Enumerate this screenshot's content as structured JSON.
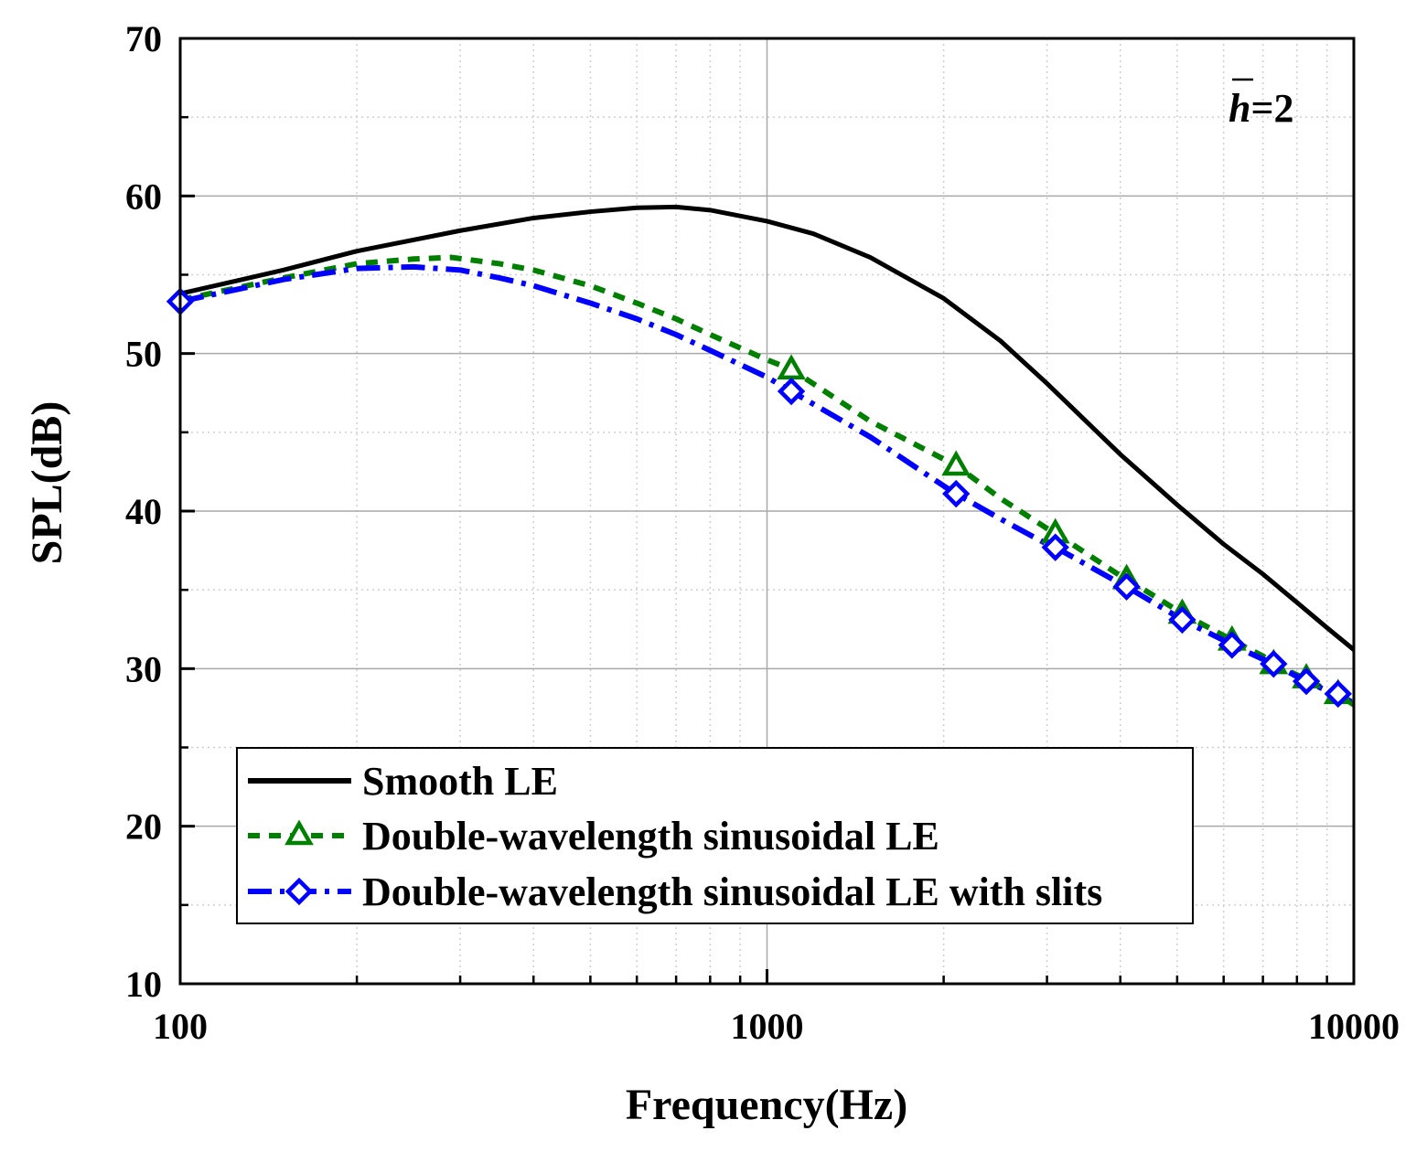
{
  "chart_data": {
    "type": "line",
    "title": "",
    "xlabel": "Frequency(Hz)",
    "ylabel": "SPL(dB)",
    "xscale": "log",
    "xlim": [
      100,
      10000
    ],
    "ylim": [
      10,
      70
    ],
    "xticks": [
      100,
      1000,
      10000
    ],
    "xtick_labels": [
      "100",
      "1000",
      "10000"
    ],
    "yticks": [
      10,
      20,
      30,
      40,
      50,
      60,
      70
    ],
    "ytick_labels": [
      "10",
      "20",
      "30",
      "40",
      "50",
      "60",
      "70"
    ],
    "grid": true,
    "legend_position": "lower-left",
    "annotation": {
      "symbol": "h",
      "rest": "=2"
    },
    "series": [
      {
        "name": "Smooth LE",
        "color": "#000000",
        "line_style": "solid",
        "marker": "none",
        "x": [
          100,
          150,
          200,
          300,
          400,
          500,
          600,
          700,
          800,
          1000,
          1200,
          1500,
          2000,
          2500,
          3000,
          4000,
          5000,
          6000,
          7000,
          8000,
          9000,
          10000
        ],
        "y": [
          53.8,
          55.3,
          56.5,
          57.8,
          58.6,
          59.0,
          59.25,
          59.3,
          59.1,
          58.4,
          57.6,
          56.1,
          53.5,
          50.8,
          48.1,
          43.6,
          40.4,
          37.9,
          36.0,
          34.2,
          32.6,
          31.2
        ]
      },
      {
        "name": "Double-wavelength sinusoidal LE",
        "color": "#008000",
        "line_style": "dashed",
        "marker": "triangle",
        "x": [
          100,
          150,
          200,
          250,
          290,
          350,
          400,
          500,
          600,
          700,
          800,
          1000,
          1100,
          1500,
          2000,
          2100,
          2500,
          3000,
          3100,
          4000,
          4100,
          5000,
          5100,
          6000,
          6200,
          7000,
          7300,
          8000,
          8300,
          9000,
          9400,
          10000
        ],
        "y": [
          53.4,
          54.8,
          55.7,
          56.0,
          56.1,
          55.7,
          55.3,
          54.3,
          53.2,
          52.2,
          51.2,
          49.6,
          49.0,
          45.7,
          43.3,
          42.9,
          40.8,
          38.9,
          38.6,
          35.9,
          35.7,
          33.7,
          33.5,
          32.1,
          31.8,
          30.8,
          30.3,
          29.6,
          29.4,
          28.6,
          28.4,
          27.7
        ]
      },
      {
        "name": "Double-wavelength sinusoidal LE with slits",
        "color": "#0000ff",
        "line_style": "dash-dot",
        "marker": "diamond",
        "x": [
          100,
          150,
          200,
          250,
          300,
          350,
          400,
          500,
          600,
          700,
          800,
          1000,
          1100,
          1500,
          2000,
          2100,
          2500,
          3000,
          3100,
          4000,
          4100,
          5000,
          5100,
          6000,
          6200,
          7000,
          7300,
          8000,
          8300,
          9000,
          9400,
          10000
        ],
        "y": [
          53.3,
          54.7,
          55.4,
          55.5,
          55.3,
          54.8,
          54.3,
          53.2,
          52.2,
          51.2,
          50.2,
          48.5,
          47.6,
          44.7,
          41.6,
          41.1,
          39.5,
          37.9,
          37.7,
          35.4,
          35.2,
          33.3,
          33.1,
          31.8,
          31.5,
          30.6,
          30.3,
          29.5,
          29.2,
          28.6,
          28.4,
          27.8
        ]
      }
    ],
    "marker_points": {
      "Double-wavelength sinusoidal LE": {
        "x": [
          1100,
          2100,
          3100,
          4100,
          5100,
          6200,
          7300,
          8300,
          9400
        ],
        "y": [
          49.0,
          42.9,
          38.6,
          35.7,
          33.5,
          31.8,
          30.3,
          29.4,
          28.4
        ]
      },
      "Double-wavelength sinusoidal LE with slits": {
        "x": [
          100,
          1100,
          2100,
          3100,
          4100,
          5100,
          6200,
          7300,
          8300,
          9400
        ],
        "y": [
          53.3,
          47.6,
          41.1,
          37.7,
          35.2,
          33.1,
          31.5,
          30.3,
          29.2,
          28.4
        ]
      }
    }
  }
}
